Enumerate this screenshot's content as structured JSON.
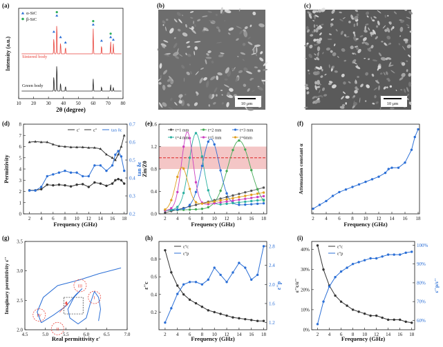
{
  "panels": {
    "a": "(a)",
    "b": "(b)",
    "c": "(c)",
    "d": "(d)",
    "e": "(e)",
    "f": "(f)",
    "g": "(g)",
    "h": "(h)",
    "i": "(i)"
  },
  "colors": {
    "blue": "#2b6fd6",
    "dark": "#333333",
    "red": "#e8433b",
    "green": "#2fae5b",
    "sem_dark": "#4a4a4a",
    "sem_light": "#9a9a9a",
    "band": "#f4c6c6"
  },
  "sem": {
    "b_scale": "10 μm",
    "c_scale": "10 μm"
  },
  "chart_data": [
    {
      "id": "a",
      "type": "line",
      "xlabel": "2θ (degree)",
      "ylabel": "Intensity (a.u.)",
      "xlim": [
        10,
        80
      ],
      "xticks": [
        "10",
        "20",
        "30",
        "40",
        "50",
        "60",
        "70",
        "80"
      ],
      "legend": [
        "α-SiC",
        "β-SiC"
      ],
      "annotations": [
        "Sintered body",
        "Green body"
      ],
      "series": [
        {
          "peaks_2theta": [
            33.6,
            35.6,
            38.1,
            41.4,
            60.0,
            65.6,
            71.7,
            73.5
          ],
          "peak_heights": [
            0.5,
            0.95,
            0.35,
            0.2,
            0.7,
            0.25,
            0.35,
            0.28
          ]
        },
        {
          "peaks_2theta": [
            33.6,
            35.6,
            38.1,
            41.4,
            60.0,
            65.6,
            71.7,
            73.5
          ],
          "peak_heights": [
            0.55,
            1.0,
            0.3,
            0.18,
            0.4,
            0.15,
            0.22,
            0.12
          ]
        }
      ]
    },
    {
      "id": "d",
      "type": "line",
      "xlabel": "Frequency (GHz)",
      "ylabel": "Permittivity",
      "y2label": "tan δε",
      "xlim": [
        1,
        18.5
      ],
      "ylim": [
        0,
        8
      ],
      "y2lim": [
        0.2,
        0.7
      ],
      "xticks": [
        "2",
        "4",
        "6",
        "8",
        "10",
        "12",
        "14",
        "16",
        "18"
      ],
      "yticks": [
        "0",
        "1",
        "2",
        "3",
        "4",
        "5",
        "6",
        "7",
        "8"
      ],
      "y2ticks": [
        "0.2",
        "0.3",
        "0.4",
        "0.5",
        "0.6",
        "0.7"
      ],
      "legend": [
        "ε'",
        "ε''",
        "tan δε"
      ],
      "x": [
        2,
        3,
        4,
        5,
        6,
        7,
        8,
        9,
        10,
        11,
        12,
        13,
        14,
        15,
        16,
        16.5,
        17,
        17.5,
        18
      ],
      "series": [
        {
          "name": "ε'",
          "values": [
            6.4,
            6.45,
            6.4,
            6.4,
            6.2,
            6.05,
            6.0,
            5.95,
            5.95,
            5.95,
            5.9,
            5.9,
            5.8,
            5.3,
            5.0,
            4.8,
            5.3,
            6.0,
            7.0
          ]
        },
        {
          "name": "ε''",
          "values": [
            2.1,
            2.1,
            2.2,
            2.6,
            2.55,
            2.6,
            2.55,
            2.45,
            2.6,
            2.65,
            2.4,
            2.8,
            2.7,
            2.5,
            2.7,
            3.0,
            3.1,
            3.0,
            2.7
          ]
        },
        {
          "name": "tan δε",
          "values": [
            0.33,
            0.33,
            0.35,
            0.41,
            0.42,
            0.43,
            0.44,
            0.43,
            0.43,
            0.41,
            0.41,
            0.47,
            0.47,
            0.44,
            0.47,
            0.53,
            0.55,
            0.52,
            0.44
          ]
        }
      ]
    },
    {
      "id": "e",
      "type": "line",
      "xlabel": "Frequency (GHz)",
      "ylabel": "Zin/Z0",
      "xlim": [
        1,
        18.5
      ],
      "ylim": [
        0,
        1.6
      ],
      "xticks": [
        "2",
        "4",
        "6",
        "8",
        "10",
        "12",
        "14",
        "16",
        "18"
      ],
      "yticks": [
        "0.0",
        "0.4",
        "0.8",
        "1.2",
        "1.6"
      ],
      "band": [
        0.8,
        1.2
      ],
      "reference": 1.0,
      "legend": [
        "t=1 mm",
        "t=2 mm",
        "t=3 mm",
        "t=4 mm",
        "t=5 mm",
        "t=6mm"
      ],
      "series": [
        {
          "name": "t=1 mm",
          "peak": 30,
          "height": 0.5,
          "width": 10
        },
        {
          "name": "t=2 mm",
          "peak": 14.0,
          "height": 1.2,
          "width": 2.6
        },
        {
          "name": "t=3 mm",
          "peak": 9.4,
          "height": 1.22,
          "width": 2.0
        },
        {
          "name": "t=4 mm",
          "peak": 7.0,
          "height": 1.32,
          "width": 1.6
        },
        {
          "name": "t=5 mm",
          "peak": 5.6,
          "height": 1.35,
          "width": 1.3
        },
        {
          "name": "t=6mm",
          "peak": 4.7,
          "height": 0.72,
          "width": 1.4
        }
      ]
    },
    {
      "id": "f",
      "type": "line",
      "xlabel": "Frequency (GHz)",
      "ylabel": "Attenuation constant α",
      "xlim": [
        2,
        18
      ],
      "xticks": [
        "2",
        "4",
        "6",
        "8",
        "10",
        "12",
        "14",
        "16",
        "18"
      ],
      "x": [
        2,
        3,
        4,
        5,
        6,
        7,
        8,
        9,
        10,
        11,
        12,
        13,
        13.5,
        14,
        15,
        16,
        17,
        17.5,
        18
      ],
      "values": [
        20,
        35,
        50,
        70,
        85,
        95,
        105,
        115,
        125,
        135,
        145,
        160,
        175,
        180,
        180,
        200,
        250,
        300,
        330
      ]
    },
    {
      "id": "g",
      "type": "line",
      "xlabel": "Real permittivity ε'",
      "ylabel": "Imaginary permittivity ε''",
      "xlim": [
        4.5,
        7.0
      ],
      "ylim": [
        2.0,
        3.5
      ],
      "xticks": [
        "4.5",
        "5.0",
        "5.5",
        "6.0",
        "6.5",
        "7.0"
      ],
      "yticks": [
        "2.0",
        "2.5",
        "3.0",
        "3.5"
      ],
      "circles": [
        "I",
        "II",
        "III",
        "IV"
      ]
    },
    {
      "id": "h",
      "type": "line",
      "xlabel": "Frequency (GHz)",
      "ylabel": "ε''c",
      "y2label": "ε''p",
      "xlim": [
        1,
        18.5
      ],
      "ylim": [
        0,
        1.0
      ],
      "y2lim": [
        1.05,
        2.9
      ],
      "xticks": [
        "2",
        "4",
        "6",
        "8",
        "10",
        "12",
        "14",
        "16",
        "18"
      ],
      "yticks": [
        "0.2",
        "0.4",
        "0.6",
        "0.8"
      ],
      "y2ticks": [
        "1.2",
        "1.6",
        "2.0",
        "2.4",
        "2.8"
      ],
      "legend": [
        "ε''c",
        "ε''p"
      ],
      "x": [
        2,
        3,
        4,
        5,
        6,
        7,
        8,
        9,
        10,
        11,
        12,
        13,
        14,
        15,
        16,
        17,
        18
      ],
      "series": [
        {
          "name": "ε''c",
          "values": [
            0.9,
            0.65,
            0.5,
            0.4,
            0.34,
            0.3,
            0.26,
            0.22,
            0.2,
            0.18,
            0.16,
            0.14,
            0.13,
            0.12,
            0.11,
            0.1,
            0.1
          ]
        },
        {
          "name": "ε''p",
          "values": [
            1.2,
            1.5,
            1.8,
            2.0,
            2.05,
            2.05,
            2.0,
            2.1,
            2.35,
            2.2,
            2.05,
            2.25,
            2.45,
            2.35,
            2.1,
            2.2,
            2.8
          ]
        }
      ]
    },
    {
      "id": "i",
      "type": "line",
      "xlabel": "Frequency (GHz)",
      "ylabel": "ε''c/ε''",
      "y2label": "ε''p/ε''",
      "xlim": [
        1,
        18.5
      ],
      "ylim": [
        0,
        40
      ],
      "y2lim": [
        55,
        100
      ],
      "xticks": [
        "2",
        "4",
        "6",
        "8",
        "10",
        "12",
        "14",
        "16",
        "18"
      ],
      "yticks": [
        "0%",
        "10%",
        "20%",
        "30%",
        "40%"
      ],
      "y2ticks": [
        "60%",
        "70%",
        "80%",
        "90%",
        "100%"
      ],
      "legend": [
        "ε''c",
        "ε''p"
      ],
      "x": [
        2,
        3,
        4,
        5,
        6,
        7,
        8,
        9,
        10,
        11,
        12,
        13,
        14,
        15,
        16,
        17,
        18
      ],
      "series": [
        {
          "name": "ε''c",
          "values": [
            42,
            30,
            22,
            17,
            14,
            12,
            10,
            9,
            8,
            7,
            7,
            6,
            5,
            5,
            5,
            4,
            3.5
          ]
        },
        {
          "name": "ε''p",
          "values": [
            58,
            70,
            78,
            83,
            86,
            88,
            90,
            91,
            92,
            93,
            93,
            94,
            95,
            95,
            95,
            96,
            96.5
          ]
        }
      ]
    }
  ]
}
